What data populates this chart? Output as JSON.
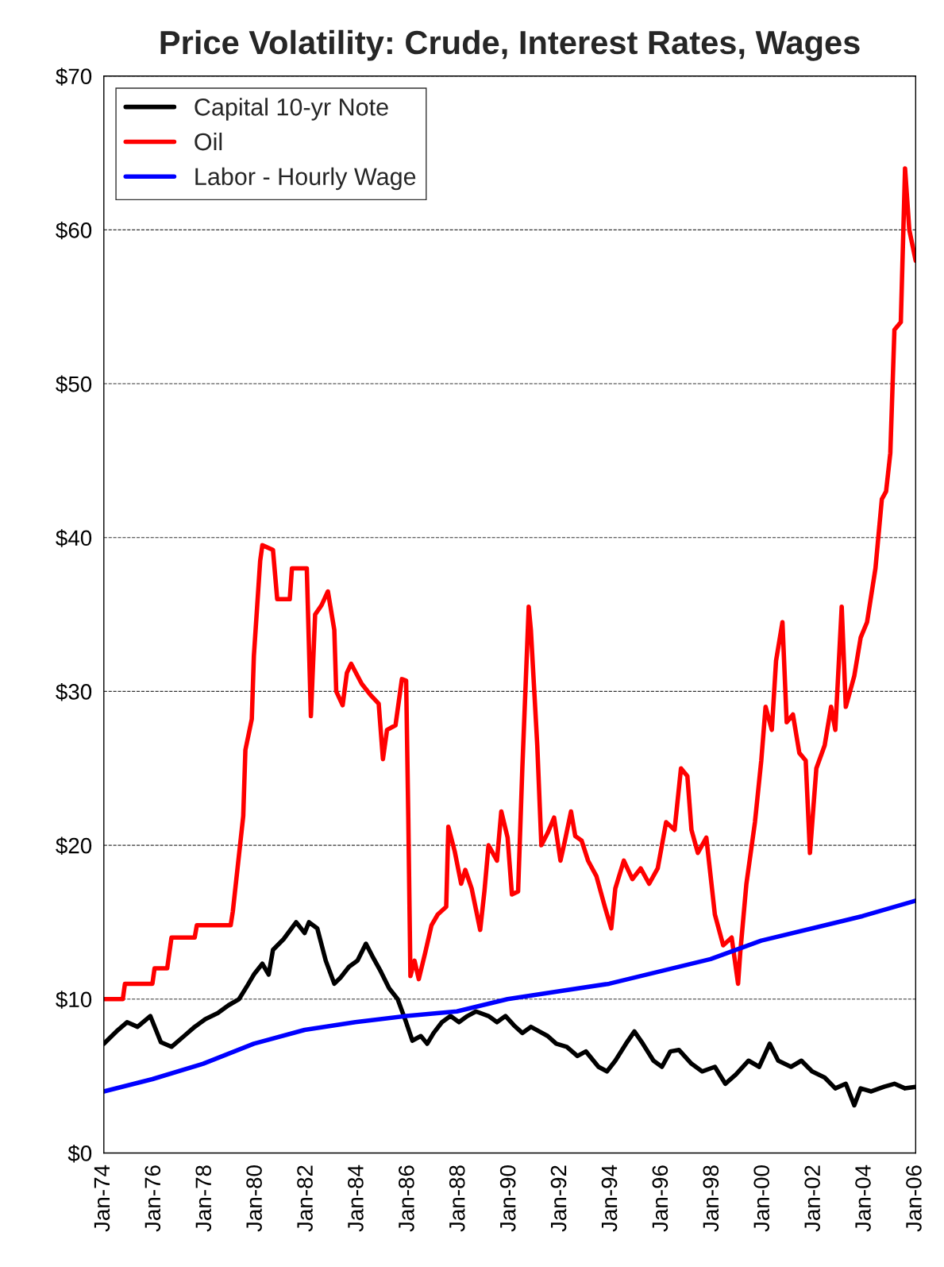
{
  "chart_data": {
    "type": "line",
    "title": "Price Volatility: Crude, Interest Rates, Wages",
    "ylim": [
      0,
      70
    ],
    "yticks": [
      {
        "value": 0,
        "label": "$0"
      },
      {
        "value": 10,
        "label": "$10"
      },
      {
        "value": 20,
        "label": "$20"
      },
      {
        "value": 30,
        "label": "$30"
      },
      {
        "value": 40,
        "label": "$40"
      },
      {
        "value": 50,
        "label": "$50"
      },
      {
        "value": 60,
        "label": "$60"
      },
      {
        "value": 70,
        "label": "$70"
      }
    ],
    "xlim": [
      "1974-01",
      "2006-01"
    ],
    "xticks": [
      {
        "value": "1974-01",
        "label": "Jan-74"
      },
      {
        "value": "1976-01",
        "label": "Jan-76"
      },
      {
        "value": "1978-01",
        "label": "Jan-78"
      },
      {
        "value": "1980-01",
        "label": "Jan-80"
      },
      {
        "value": "1982-01",
        "label": "Jan-82"
      },
      {
        "value": "1984-01",
        "label": "Jan-84"
      },
      {
        "value": "1986-01",
        "label": "Jan-86"
      },
      {
        "value": "1988-01",
        "label": "Jan-88"
      },
      {
        "value": "1990-01",
        "label": "Jan-90"
      },
      {
        "value": "1992-01",
        "label": "Jan-92"
      },
      {
        "value": "1994-01",
        "label": "Jan-94"
      },
      {
        "value": "1996-01",
        "label": "Jan-96"
      },
      {
        "value": "1998-01",
        "label": "Jan-98"
      },
      {
        "value": "2000-01",
        "label": "Jan-00"
      },
      {
        "value": "2002-01",
        "label": "Jan-02"
      },
      {
        "value": "2004-01",
        "label": "Jan-04"
      },
      {
        "value": "2006-01",
        "label": "Jan-06"
      }
    ],
    "grid": "y",
    "legend": "top left",
    "line_style": "solid",
    "series": [
      {
        "name": "Capital 10-yr Note",
        "color": "#000000",
        "x": [
          "1974-01",
          "1974-07",
          "1974-12",
          "1975-05",
          "1975-11",
          "1976-04",
          "1976-09",
          "1977-03",
          "1977-08",
          "1978-01",
          "1978-07",
          "1978-12",
          "1979-05",
          "1979-09",
          "1979-12",
          "1980-04",
          "1980-07",
          "1980-09",
          "1981-02",
          "1981-08",
          "1981-12",
          "1982-02",
          "1982-06",
          "1982-10",
          "1983-02",
          "1983-05",
          "1983-09",
          "1984-01",
          "1984-05",
          "1984-08",
          "1984-12",
          "1985-04",
          "1985-08",
          "1985-12",
          "1986-03",
          "1986-07",
          "1986-10",
          "1987-01",
          "1987-05",
          "1987-09",
          "1988-01",
          "1988-05",
          "1988-09",
          "1989-03",
          "1989-07",
          "1989-11",
          "1990-03",
          "1990-07",
          "1990-11",
          "1991-03",
          "1991-07",
          "1991-11",
          "1992-04",
          "1992-09",
          "1993-01",
          "1993-07",
          "1993-11",
          "1994-03",
          "1994-08",
          "1994-12",
          "1995-04",
          "1995-09",
          "1996-01",
          "1996-05",
          "1996-09",
          "1997-03",
          "1997-08",
          "1998-02",
          "1998-07",
          "1998-12",
          "1999-06",
          "1999-11",
          "2000-04",
          "2000-08",
          "2001-02",
          "2001-07",
          "2001-12",
          "2002-06",
          "2002-11",
          "2003-04",
          "2003-08",
          "2003-11",
          "2004-04",
          "2004-10",
          "2005-03",
          "2005-08",
          "2006-01"
        ],
        "values": [
          7.1,
          7.9,
          8.5,
          8.2,
          8.9,
          7.2,
          6.9,
          7.6,
          8.2,
          8.7,
          9.1,
          9.6,
          10.0,
          10.9,
          11.6,
          12.3,
          11.6,
          13.2,
          13.9,
          15.0,
          14.3,
          15.0,
          14.6,
          12.5,
          11.0,
          11.4,
          12.1,
          12.5,
          13.6,
          12.8,
          11.8,
          10.7,
          10.0,
          8.5,
          7.3,
          7.6,
          7.1,
          7.8,
          8.5,
          8.9,
          8.5,
          8.9,
          9.2,
          8.9,
          8.5,
          8.9,
          8.3,
          7.8,
          8.2,
          7.9,
          7.6,
          7.1,
          6.9,
          6.3,
          6.6,
          5.6,
          5.3,
          6.0,
          7.1,
          7.9,
          7.1,
          6.0,
          5.6,
          6.6,
          6.7,
          5.8,
          5.3,
          5.6,
          4.5,
          5.1,
          6.0,
          5.6,
          7.1,
          6.0,
          5.6,
          6.0,
          5.3,
          4.9,
          4.2,
          4.5,
          3.1,
          4.2,
          4.0,
          4.3,
          4.5,
          4.2,
          4.3
        ]
      },
      {
        "name": "Oil",
        "color": "#ff0000",
        "x": [
          "1974-01",
          "1974-10",
          "1974-11",
          "1975-12",
          "1976-01",
          "1976-07",
          "1976-08",
          "1976-09",
          "1977-08",
          "1977-09",
          "1979-01",
          "1979-02",
          "1979-07",
          "1979-08",
          "1979-11",
          "1979-12",
          "1980-03",
          "1980-04",
          "1980-09",
          "1980-11",
          "1981-05",
          "1981-06",
          "1982-01",
          "1982-03",
          "1982-05",
          "1982-08",
          "1982-11",
          "1983-02",
          "1983-03",
          "1983-06",
          "1983-08",
          "1983-10",
          "1984-03",
          "1984-07",
          "1984-11",
          "1985-01",
          "1985-03",
          "1985-07",
          "1985-10",
          "1985-12",
          "1986-01",
          "1986-02",
          "1986-04",
          "1986-06",
          "1986-09",
          "1986-12",
          "1987-03",
          "1987-07",
          "1987-08",
          "1987-11",
          "1988-02",
          "1988-04",
          "1988-07",
          "1988-11",
          "1989-01",
          "1989-03",
          "1989-07",
          "1989-09",
          "1989-12",
          "1990-02",
          "1990-05",
          "1990-07",
          "1990-10",
          "1990-11",
          "1991-02",
          "1991-04",
          "1991-07",
          "1991-10",
          "1992-01",
          "1992-03",
          "1992-06",
          "1992-08",
          "1992-11",
          "1993-02",
          "1993-06",
          "1993-10",
          "1994-01",
          "1994-03",
          "1994-07",
          "1994-11",
          "1995-03",
          "1995-07",
          "1995-11",
          "1996-03",
          "1996-07",
          "1996-10",
          "1997-01",
          "1997-03",
          "1997-06",
          "1997-10",
          "1998-02",
          "1998-06",
          "1998-10",
          "1999-01",
          "1999-02",
          "1999-05",
          "1999-09",
          "1999-12",
          "2000-02",
          "2000-05",
          "2000-07",
          "2000-10",
          "2000-12",
          "2001-03",
          "2001-06",
          "2001-09",
          "2001-11",
          "2002-02",
          "2002-06",
          "2002-09",
          "2002-11",
          "2003-02",
          "2003-04",
          "2003-08",
          "2003-11",
          "2004-02",
          "2004-06",
          "2004-09",
          "2004-11",
          "2005-01",
          "2005-03",
          "2005-06",
          "2005-08",
          "2005-10",
          "2006-01"
        ],
        "values": [
          10.0,
          10.0,
          11.0,
          11.0,
          12.0,
          12.0,
          13.0,
          14.0,
          14.0,
          14.8,
          14.8,
          15.7,
          21.9,
          26.2,
          28.2,
          32.3,
          38.5,
          39.5,
          39.2,
          36.0,
          36.0,
          38.0,
          38.0,
          28.4,
          35.0,
          35.6,
          36.5,
          34.0,
          30.0,
          29.1,
          31.2,
          31.8,
          30.5,
          29.8,
          29.2,
          25.6,
          27.5,
          27.8,
          30.8,
          30.7,
          21.9,
          11.5,
          12.5,
          11.3,
          13.0,
          14.8,
          15.5,
          16.0,
          21.2,
          19.6,
          17.5,
          18.4,
          17.2,
          14.5,
          17.0,
          20.0,
          19.0,
          22.2,
          20.5,
          16.8,
          17.0,
          25.0,
          35.5,
          34.0,
          26.5,
          20.0,
          20.8,
          21.8,
          19.0,
          20.2,
          22.2,
          20.6,
          20.3,
          19.0,
          18.0,
          16.0,
          14.6,
          17.2,
          19.0,
          17.8,
          18.5,
          17.5,
          18.5,
          21.5,
          21.0,
          25.0,
          24.5,
          21.0,
          19.5,
          20.5,
          15.5,
          13.5,
          14.0,
          11.0,
          13.0,
          17.5,
          21.5,
          25.5,
          29.0,
          27.5,
          32.0,
          34.5,
          28.0,
          28.5,
          26.0,
          25.5,
          19.5,
          25.0,
          26.5,
          29.0,
          27.5,
          35.5,
          29.0,
          31.0,
          33.5,
          34.5,
          38.0,
          42.5,
          43.0,
          45.5,
          53.5,
          54.0,
          64.0,
          60.0,
          58.0
        ]
      },
      {
        "name": "Labor - Hourly Wage",
        "color": "#0000ff",
        "x": [
          "1974-01",
          "1975-12",
          "1977-12",
          "1979-12",
          "1981-12",
          "1983-12",
          "1985-12",
          "1987-12",
          "1989-12",
          "1991-12",
          "1993-12",
          "1995-12",
          "1997-12",
          "1999-12",
          "2001-12",
          "2003-12",
          "2006-01"
        ],
        "values": [
          4.0,
          4.8,
          5.8,
          7.1,
          8.0,
          8.5,
          8.9,
          9.2,
          10.0,
          10.5,
          11.0,
          11.8,
          12.6,
          13.8,
          14.6,
          15.4,
          16.4
        ]
      }
    ]
  }
}
